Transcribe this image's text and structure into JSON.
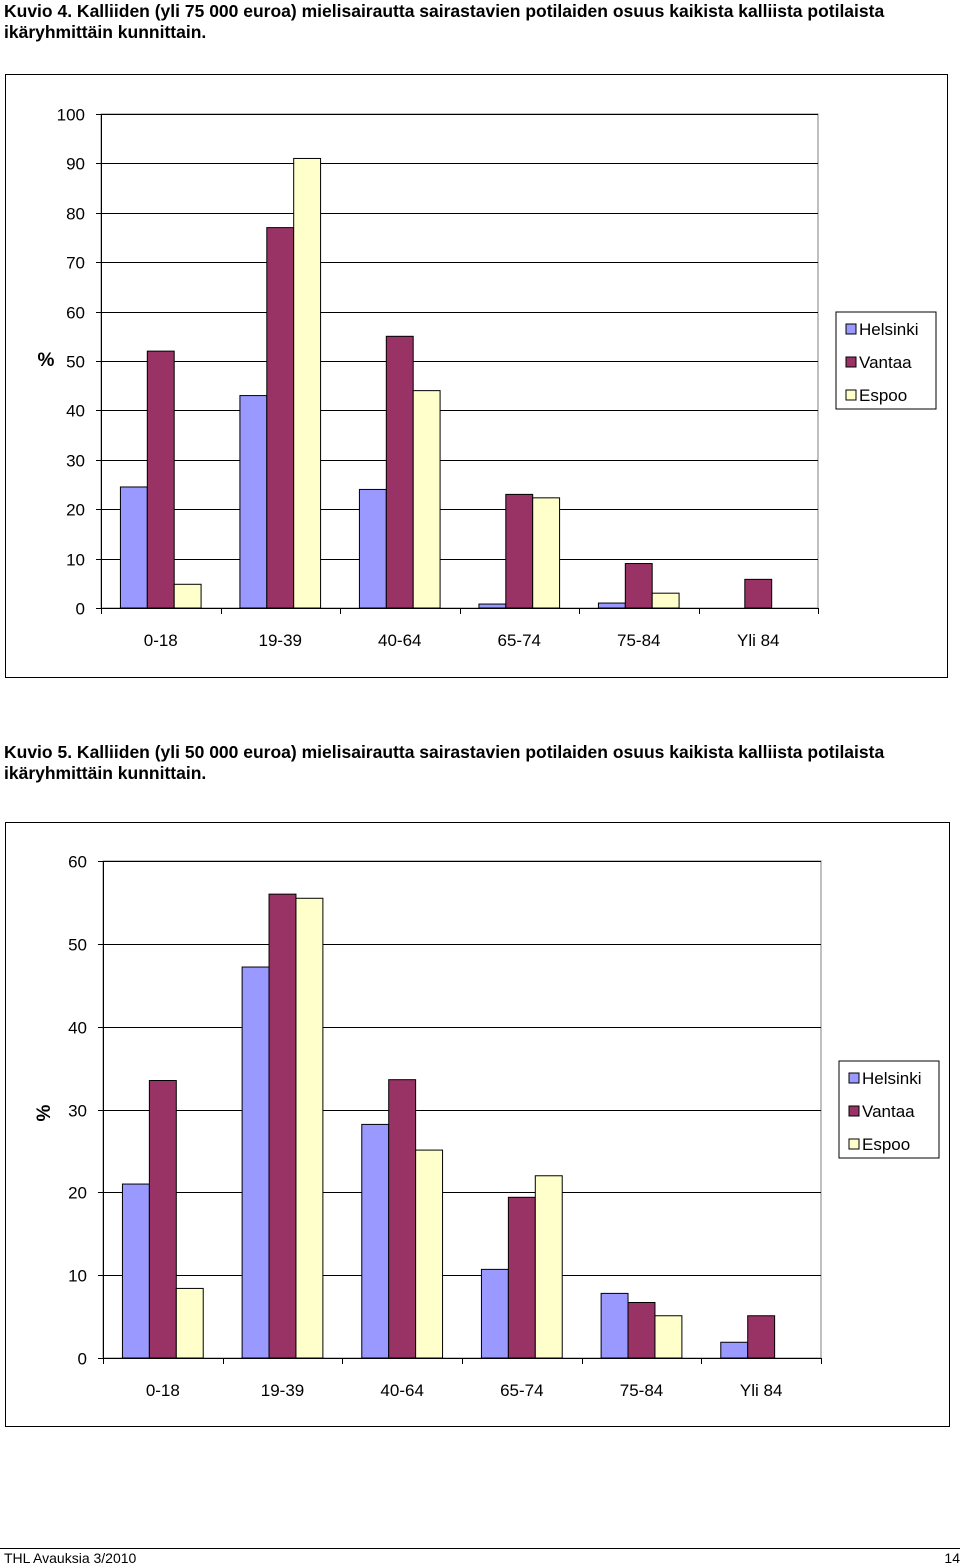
{
  "captions": {
    "fig4": "Kuvio 4. Kalliiden (yli 75 000 euroa) mielisairautta sairastavien potilaiden osuus kaikista kalliista potilaista ikäryhmittäin kunnittain.",
    "fig5": "Kuvio 5. Kalliiden (yli 50 000 euroa) mielisairautta sairastavien potilaiden osuus kaikista kalliista potilaista ikäryhmittäin kunnittain."
  },
  "footer": {
    "left": "THL Avauksia 3/2010",
    "right": "14"
  },
  "colors": {
    "Helsinki": "#9999ff",
    "Vantaa": "#993366",
    "Espoo": "#ffffcc",
    "gridline": "#000000",
    "plot_border": "#808080"
  },
  "chart_data": [
    {
      "type": "bar",
      "title": "",
      "xlabel": "",
      "ylabel": "%",
      "ylim": [
        0,
        100
      ],
      "ytick_step": 10,
      "grid": true,
      "legend_position": "right",
      "categories": [
        "0-18",
        "19-39",
        "40-64",
        "65-74",
        "75-84",
        "Yli 84"
      ],
      "series": [
        {
          "name": "Helsinki",
          "values": [
            24.5,
            43,
            24,
            0.8,
            1,
            0
          ]
        },
        {
          "name": "Vantaa",
          "values": [
            52,
            77,
            55,
            23,
            9,
            5.8
          ]
        },
        {
          "name": "Espoo",
          "values": [
            4.8,
            91,
            44,
            22.3,
            3,
            0
          ]
        }
      ]
    },
    {
      "type": "bar",
      "title": "",
      "xlabel": "",
      "ylabel": "%",
      "ylim": [
        0,
        60
      ],
      "ytick_step": 10,
      "grid": true,
      "legend_position": "right",
      "categories": [
        "0-18",
        "19-39",
        "40-64",
        "65-74",
        "75-84",
        "Yli 84"
      ],
      "series": [
        {
          "name": "Helsinki",
          "values": [
            21,
            47.2,
            28.2,
            10.7,
            7.8,
            1.9
          ]
        },
        {
          "name": "Vantaa",
          "values": [
            33.5,
            56,
            33.6,
            19.4,
            6.7,
            5.1
          ]
        },
        {
          "name": "Espoo",
          "values": [
            8.4,
            55.5,
            25.1,
            22,
            5.1,
            0
          ]
        }
      ]
    }
  ]
}
